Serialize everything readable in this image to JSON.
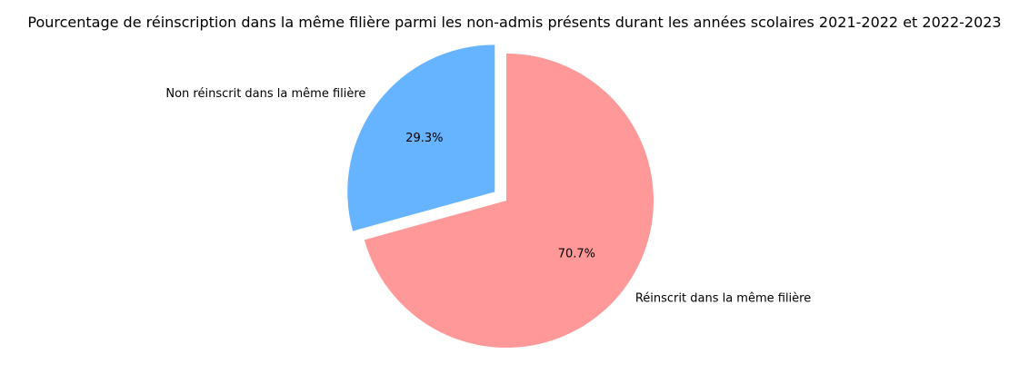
{
  "chart_data": {
    "type": "pie",
    "title": "Pourcentage de réinscription dans la même filière parmi les non-admis présents durant les années scolaires 2021-2022 et 2022-2023",
    "slices": [
      {
        "label": "Réinscrit dans la même filière",
        "value": 70.7,
        "pct_label": "70.7%",
        "color": "#ff9999",
        "exploded": false
      },
      {
        "label": "Non réinscrit dans la même filière",
        "value": 29.3,
        "pct_label": "29.3%",
        "color": "#66b3ff",
        "exploded": true
      }
    ],
    "start_angle_deg": 90,
    "direction": "clockwise",
    "legend": "none"
  }
}
